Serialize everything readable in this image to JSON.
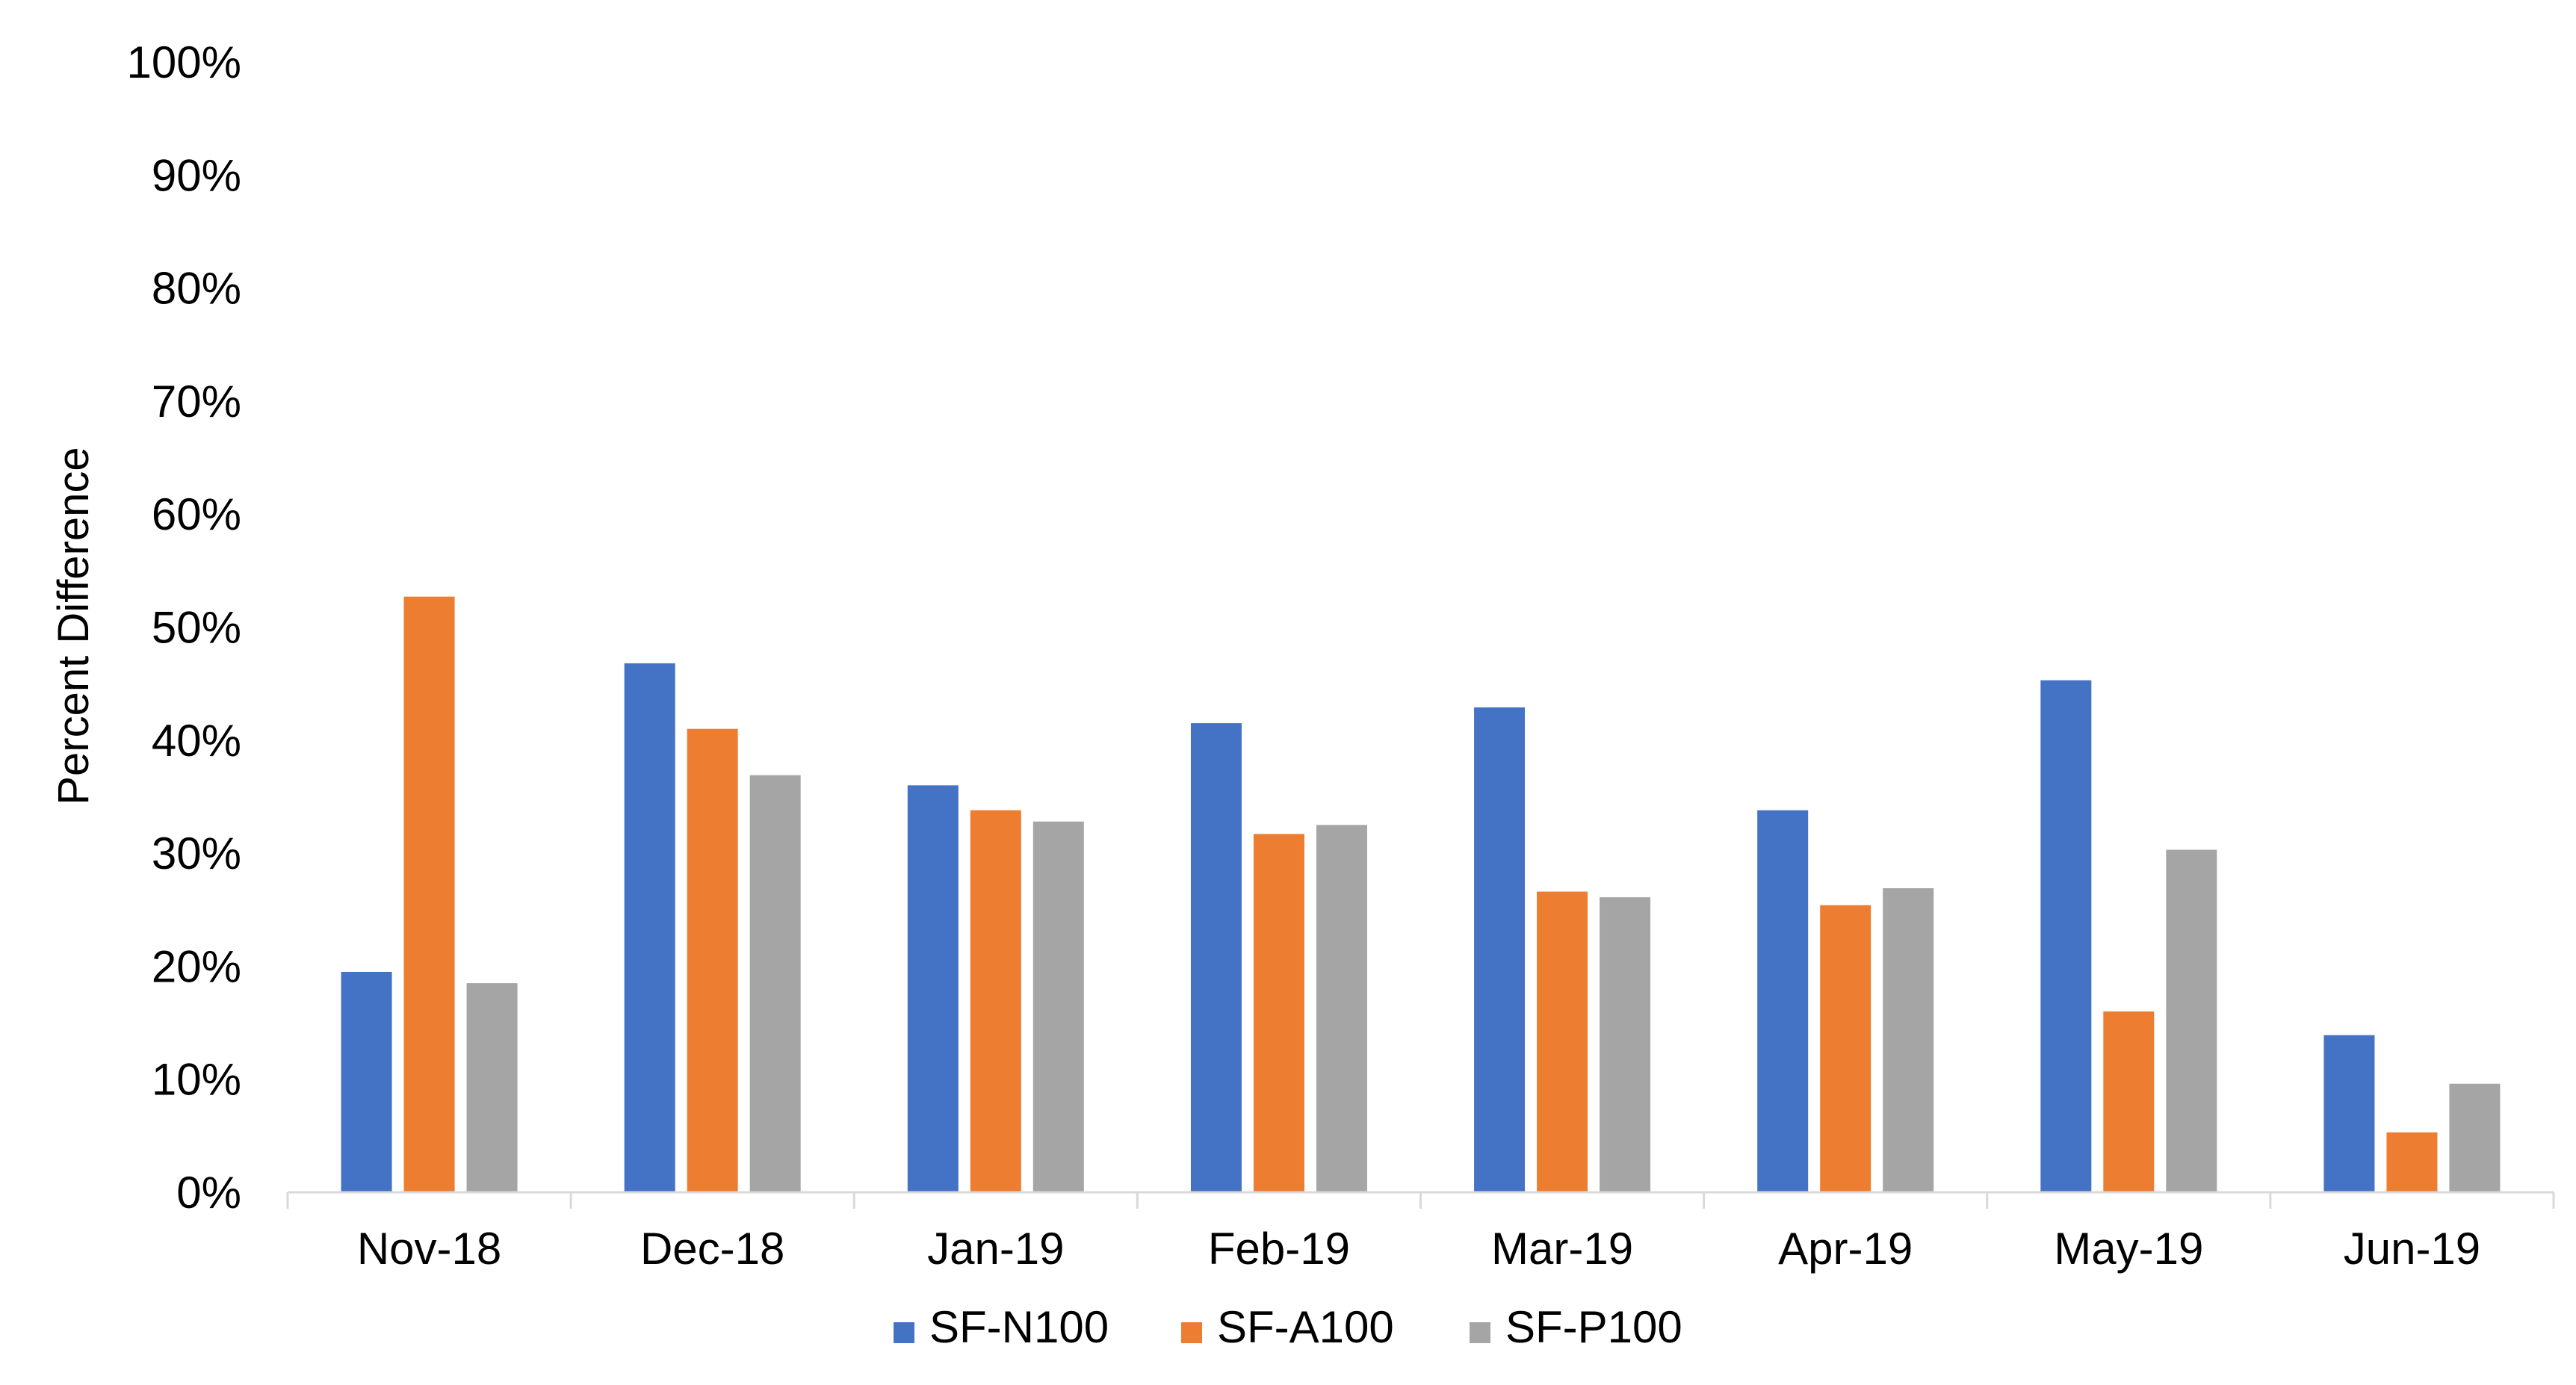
{
  "chart_data": {
    "type": "bar",
    "ylabel": "Percent Difference",
    "ylim": [
      0,
      100
    ],
    "y_ticks": [
      "0%",
      "10%",
      "20%",
      "30%",
      "40%",
      "50%",
      "60%",
      "70%",
      "80%",
      "90%",
      "100%"
    ],
    "categories": [
      "Nov-18",
      "Dec-18",
      "Jan-19",
      "Feb-19",
      "Mar-19",
      "Apr-19",
      "May-19",
      "Jun-19"
    ],
    "series": [
      {
        "name": "SF-N100",
        "color": "#4472C4",
        "values": [
          19.5,
          46.8,
          36.0,
          41.5,
          42.9,
          33.8,
          45.3,
          13.9
        ]
      },
      {
        "name": "SF-A100",
        "color": "#ED7D31",
        "values": [
          52.7,
          41.0,
          33.8,
          31.7,
          26.6,
          25.4,
          16.0,
          5.3
        ]
      },
      {
        "name": "SF-P100",
        "color": "#A5A5A5",
        "values": [
          18.5,
          36.9,
          32.8,
          32.5,
          26.1,
          26.9,
          30.3,
          9.6
        ]
      }
    ],
    "grid": false,
    "legend_position": "bottom"
  }
}
